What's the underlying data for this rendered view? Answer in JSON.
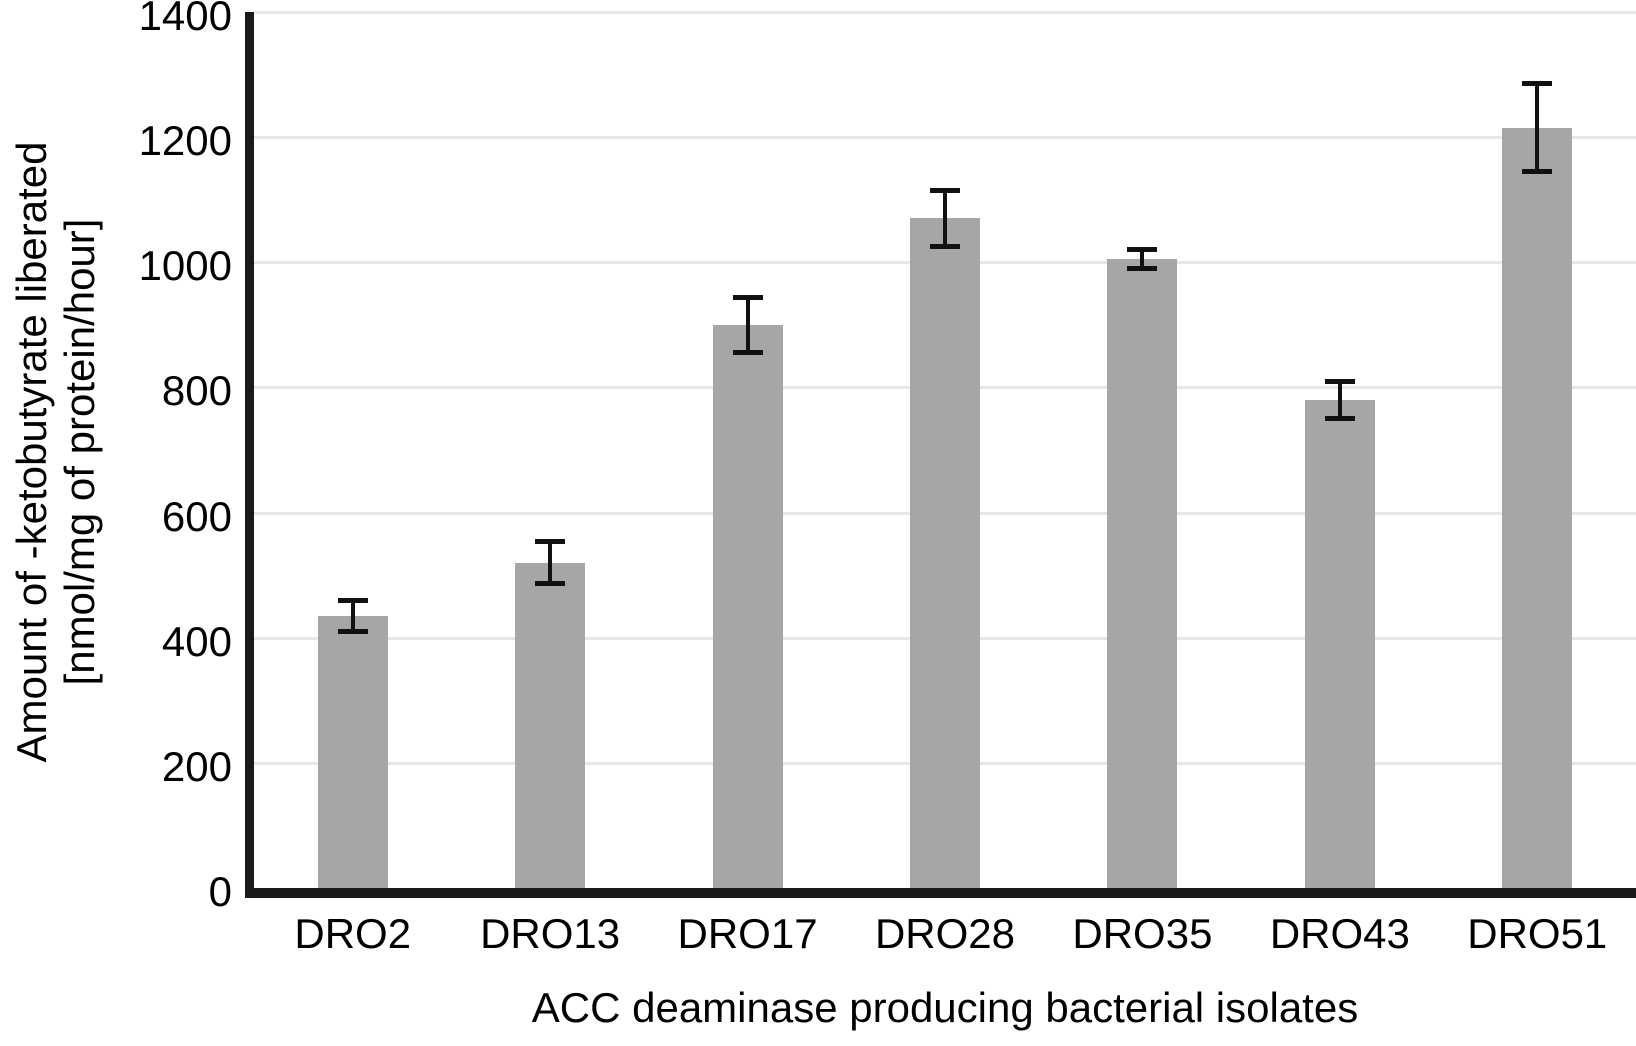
{
  "chart_data": {
    "type": "bar",
    "title": "",
    "categories": [
      "DRO2",
      "DRO13",
      "DRO17",
      "DRO28",
      "DRO35",
      "DRO43",
      "DRO51"
    ],
    "series": [
      {
        "name": "Amount of -ketobutyrate liberated",
        "values": [
          435,
          520,
          900,
          1070,
          1005,
          780,
          1215
        ],
        "errors": [
          25,
          33,
          44,
          45,
          15,
          29,
          70
        ]
      }
    ],
    "xlabel": "ACC deaminase producing bacterial isolates",
    "ylabel_line1": "Amount of -ketobutyrate liberated",
    "ylabel_line2": "[nmol/mg of protein/hour]",
    "ylim": [
      0,
      1400
    ],
    "yticks": [
      0,
      200,
      400,
      600,
      800,
      1000,
      1200,
      1400
    ],
    "grid": "horizontal gridlines on",
    "legend": "none",
    "colors": {
      "bar": "#a6a6a6",
      "gridline": "#e7e7e7",
      "axis": "#1a1a1a",
      "error_bar": "#111111",
      "text": "#000000"
    }
  }
}
